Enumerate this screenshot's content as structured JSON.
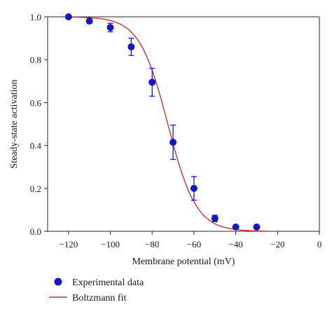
{
  "chart_data": {
    "type": "scatter",
    "xlabel": "Membrane potential (mV)",
    "ylabel": "Steady-state activation",
    "xlim": [
      -130,
      0
    ],
    "ylim": [
      0,
      1.0
    ],
    "xticks": [
      -120,
      -100,
      -80,
      -60,
      -40,
      -20,
      0
    ],
    "xtick_labels": [
      "−120",
      "−100",
      "−80",
      "−60",
      "−40",
      "−20",
      "0"
    ],
    "yticks": [
      0,
      0.2,
      0.4,
      0.6,
      0.8,
      1.0
    ],
    "ytick_labels": [
      "0.0",
      "0.2",
      "0.4",
      "0.6",
      "0.8",
      "1.0"
    ],
    "grid": false,
    "legend_position": "bottom-left",
    "series": [
      {
        "name": "Experimental data",
        "kind": "points",
        "color": "#1515c8",
        "x": [
          -120,
          -110,
          -100,
          -90,
          -80,
          -70,
          -60,
          -50,
          -40,
          -30
        ],
        "y": [
          1.0,
          0.98,
          0.95,
          0.86,
          0.695,
          0.415,
          0.2,
          0.06,
          0.02,
          0.02
        ],
        "err": [
          0,
          0.01,
          0.02,
          0.04,
          0.065,
          0.08,
          0.055,
          0.015,
          0.005,
          0
        ]
      },
      {
        "name": "Boltzmann fit",
        "kind": "line",
        "color": "#c8332b",
        "v_half": -72.5,
        "slope": 6.8,
        "x_range": [
          -120,
          -25
        ]
      }
    ]
  }
}
